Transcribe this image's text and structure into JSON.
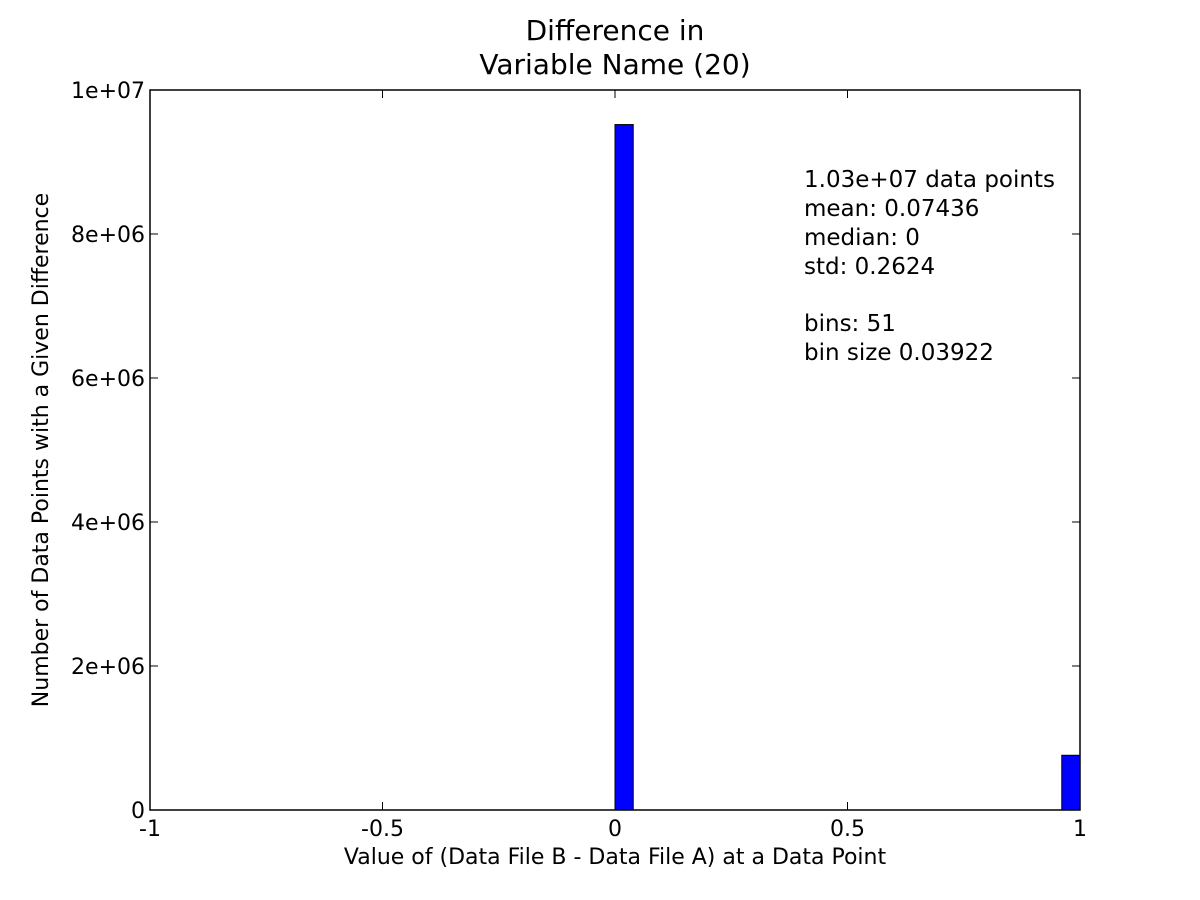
{
  "chart_data": {
    "type": "bar",
    "title_lines": [
      "Difference in",
      "Variable Name (20)"
    ],
    "xlabel": "Value of (Data File B - Data File A) at a Data Point",
    "ylabel": "Number of Data Points with a Given Difference",
    "xlim": [
      -1,
      1
    ],
    "ylim": [
      0,
      10000000
    ],
    "x_ticks": [
      {
        "value": -1,
        "label": "-1"
      },
      {
        "value": -0.5,
        "label": "-0.5"
      },
      {
        "value": 0,
        "label": "0"
      },
      {
        "value": 0.5,
        "label": "0.5"
      },
      {
        "value": 1,
        "label": "1"
      }
    ],
    "y_ticks": [
      {
        "value": 0,
        "label": "0"
      },
      {
        "value": 2000000,
        "label": "2e+06"
      },
      {
        "value": 4000000,
        "label": "4e+06"
      },
      {
        "value": 6000000,
        "label": "6e+06"
      },
      {
        "value": 8000000,
        "label": "8e+06"
      },
      {
        "value": 10000000,
        "label": "1e+07"
      }
    ],
    "bars": [
      {
        "x0": 0.0,
        "x1": 0.0392,
        "count": 9520000
      },
      {
        "x0": 0.9608,
        "x1": 1.0,
        "count": 760000
      }
    ],
    "bar_color": "#0000ff",
    "grid": false,
    "annotation_lines": [
      "1.03e+07 data points",
      "mean: 0.07436",
      "median: 0",
      "std: 0.2624",
      "",
      "bins: 51",
      "bin size 0.03922"
    ]
  }
}
